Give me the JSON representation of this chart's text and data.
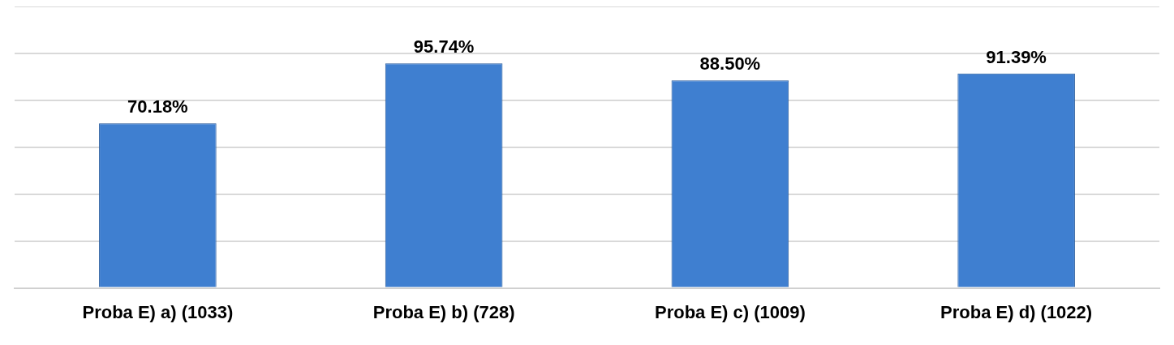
{
  "chart_data": {
    "type": "bar",
    "categories": [
      "Proba E) a) (1033)",
      "Proba E) b) (728)",
      "Proba E) c) (1009)",
      "Proba E) d) (1022)"
    ],
    "values": [
      70.18,
      95.74,
      88.5,
      91.39
    ],
    "value_labels": [
      "70.18%",
      "95.74%",
      "88.50%",
      "91.39%"
    ],
    "color": "#3f7fd0",
    "ylim": [
      0,
      120
    ],
    "yticks": [
      {
        "value": 0,
        "label": null
      },
      {
        "value": 20,
        "label": null
      },
      {
        "value": 40,
        "label": null
      },
      {
        "value": 60,
        "label": null
      },
      {
        "value": 80,
        "label": null
      },
      {
        "value": 100,
        "label": null
      },
      {
        "value": 120,
        "label": null
      }
    ],
    "grid": "y",
    "tick_labels": "x",
    "legend": false
  }
}
